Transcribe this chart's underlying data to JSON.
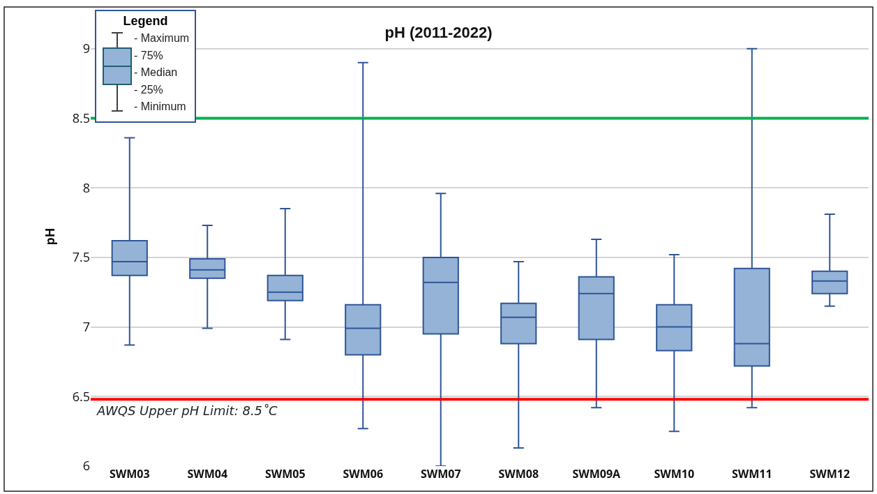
{
  "chart_data": {
    "type": "box",
    "title": "pH (2011-2022)",
    "ylabel": "pH",
    "legend_title": "Legend",
    "grid": "y",
    "categories": [
      "SWM03",
      "SWM04",
      "SWM05",
      "SWM06",
      "SWM07",
      "SWM08",
      "SWM09A",
      "SWM10",
      "SWM11",
      "SWM12"
    ],
    "ylim": [
      6,
      9.3
    ],
    "yticks": [
      6,
      6.5,
      7,
      7.5,
      8,
      8.5,
      9
    ],
    "series": [
      {
        "color": "#95b3d7",
        "boxes": [
          {
            "low": 6.87,
            "q1": 7.37,
            "median": 7.47,
            "q3": 7.62,
            "high": 8.36
          },
          {
            "low": 6.99,
            "q1": 7.35,
            "median": 7.41,
            "q3": 7.49,
            "high": 7.73
          },
          {
            "low": 6.91,
            "q1": 7.19,
            "median": 7.25,
            "q3": 7.37,
            "high": 7.85
          },
          {
            "low": 6.27,
            "q1": 6.8,
            "median": 6.99,
            "q3": 7.16,
            "high": 8.9
          },
          {
            "low": 6.0,
            "q1": 6.95,
            "median": 7.32,
            "q3": 7.5,
            "high": 7.96
          },
          {
            "low": 6.13,
            "q1": 6.88,
            "median": 7.07,
            "q3": 7.17,
            "high": 7.47
          },
          {
            "low": 6.42,
            "q1": 6.91,
            "median": 7.24,
            "q3": 7.36,
            "high": 7.63
          },
          {
            "low": 6.25,
            "q1": 6.83,
            "median": 7.0,
            "q3": 7.16,
            "high": 7.52
          },
          {
            "low": 6.42,
            "q1": 6.72,
            "median": 6.88,
            "q3": 7.42,
            "high": 9.0
          },
          {
            "low": 7.15,
            "q1": 7.24,
            "median": 7.33,
            "q3": 7.4,
            "high": 7.81
          }
        ]
      }
    ],
    "ref_lines": [
      {
        "axis": "y",
        "value": 8.5,
        "color": "#00b050"
      },
      {
        "axis": "y",
        "value": 6.48,
        "color": "#ff0000"
      }
    ],
    "annotations": [
      "AWQS Upper pH Limit: 8.5˚C",
      "- Maximum",
      "- 75%",
      "- Median",
      "- 25%",
      "- Minimum"
    ]
  }
}
